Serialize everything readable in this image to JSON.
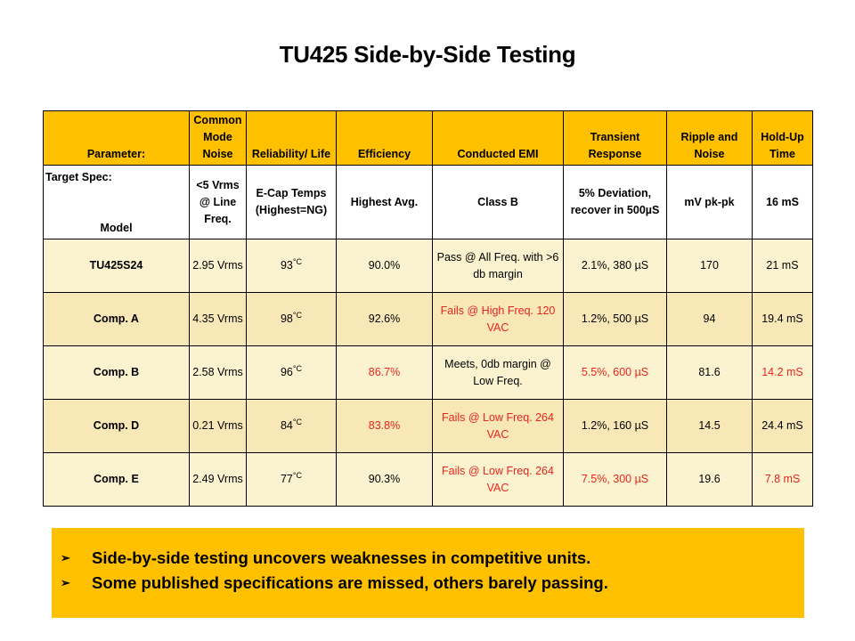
{
  "title": "TU425 Side-by-Side Testing",
  "table": {
    "headers": [
      "Parameter:",
      "Common Mode Noise",
      "Reliability/ Life",
      "Efficiency",
      "Conducted EMI",
      "Transient Response",
      "Ripple and Noise",
      "Hold-Up Time"
    ],
    "target": {
      "label": "Target Spec:",
      "model_label": "Model",
      "cells": [
        "<5 Vrms @ Line Freq.",
        "E-Cap Temps (Highest=NG)",
        "Highest Avg.",
        "Class B",
        "5% Deviation, recover in 500µS",
        "mV pk-pk",
        "16 mS"
      ]
    },
    "rows": [
      {
        "model": "TU425S24",
        "noise": "2.95 Vrms",
        "temp": "93",
        "temp_unit": "°C",
        "efficiency": "90.0%",
        "emi": "Pass @ All Freq. with >6 db margin",
        "transient": "2.1%, 380 µS",
        "ripple": "170",
        "holdup": "21 mS"
      },
      {
        "model": "Comp. A",
        "noise": "4.35 Vrms",
        "temp": "98",
        "temp_unit": "°C",
        "efficiency": "92.6%",
        "emi": "Fails @ High Freq. 120 VAC",
        "transient": "1.2%, 500 µS",
        "ripple": "94",
        "holdup": "19.4 mS"
      },
      {
        "model": "Comp. B",
        "noise": "2.58 Vrms",
        "temp": "96",
        "temp_unit": "°C",
        "efficiency": "86.7%",
        "emi": "Meets, 0db margin @ Low Freq.",
        "transient": "5.5%, 600 µS",
        "ripple": "81.6",
        "holdup": "14.2 mS"
      },
      {
        "model": "Comp. D",
        "noise": "0.21 Vrms",
        "temp": "84",
        "temp_unit": "°C",
        "efficiency": "83.8%",
        "emi": "Fails @ Low Freq. 264 VAC",
        "transient": "1.2%, 160 µS",
        "ripple": "14.5",
        "holdup": "24.4 mS"
      },
      {
        "model": "Comp. E",
        "noise": "2.49 Vrms",
        "temp": "77",
        "temp_unit": "°C",
        "efficiency": "90.3%",
        "emi": "Fails @ Low Freq. 264 VAC",
        "transient": "7.5%, 300 µS",
        "ripple": "19.6",
        "holdup": "7.8 mS"
      }
    ]
  },
  "colors": {
    "header_bg": "#ffc000",
    "fail_text": "#e8251c",
    "row_light": "#fbf3d0",
    "row_dark": "#f8e8b8"
  },
  "bullets": {
    "marker_icon": "arrow-bullet-icon",
    "items": [
      "Side-by-side testing uncovers weaknesses in competitive units.",
      "Some published specifications are missed, others barely passing."
    ]
  }
}
